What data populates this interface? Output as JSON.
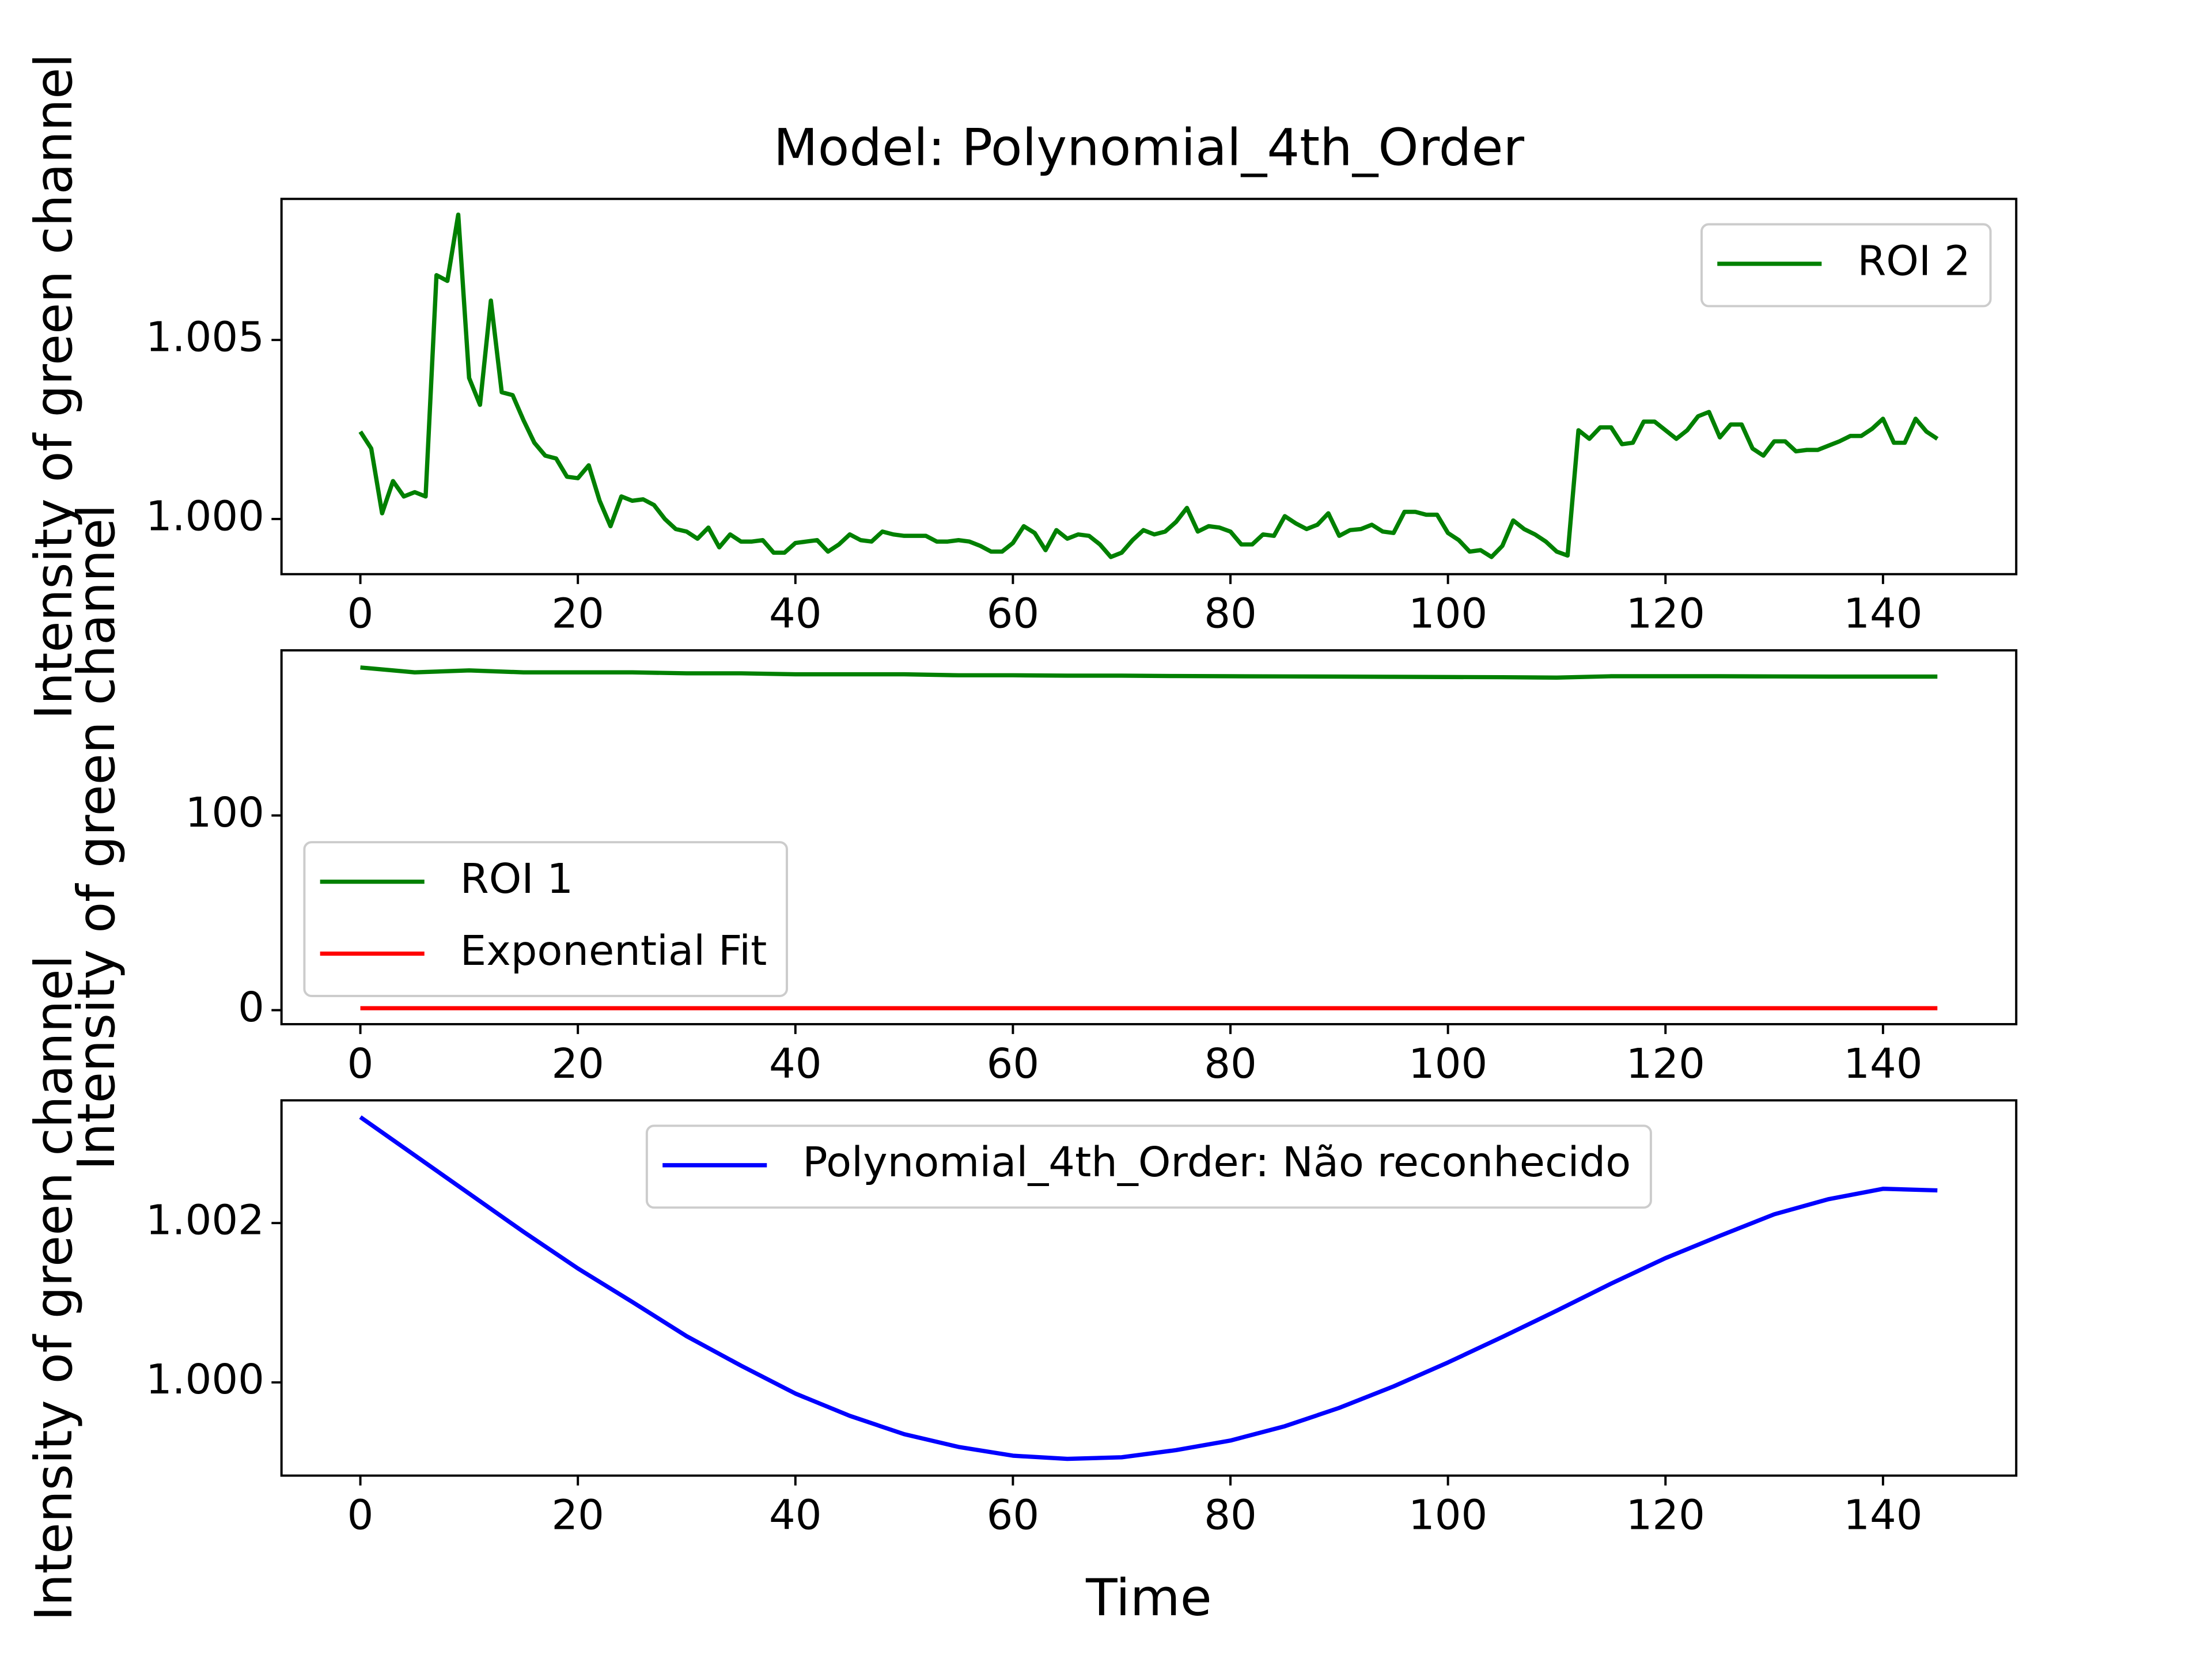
{
  "chart_data": [
    {
      "type": "line",
      "title": "Model: Polynomial_4th_Order",
      "ylabel": "Intensity of green channel",
      "x": [
        0,
        1,
        2,
        3,
        4,
        5,
        6,
        7,
        8,
        9,
        10,
        11,
        12,
        13,
        14,
        15,
        16,
        17,
        18,
        19,
        20,
        21,
        22,
        23,
        24,
        25,
        26,
        27,
        28,
        29,
        30,
        31,
        32,
        33,
        34,
        35,
        36,
        37,
        38,
        39,
        40,
        41,
        42,
        43,
        44,
        45,
        46,
        47,
        48,
        49,
        50,
        51,
        52,
        53,
        54,
        55,
        56,
        57,
        58,
        59,
        60,
        61,
        62,
        63,
        64,
        65,
        66,
        67,
        68,
        69,
        70,
        71,
        72,
        73,
        74,
        75,
        76,
        77,
        78,
        79,
        80,
        81,
        82,
        83,
        84,
        85,
        86,
        87,
        88,
        89,
        90,
        91,
        92,
        93,
        94,
        95,
        96,
        97,
        98,
        99,
        100,
        101,
        102,
        103,
        104,
        105,
        106,
        107,
        108,
        109,
        110,
        111,
        112,
        113,
        114,
        115,
        116,
        117,
        118,
        119,
        120,
        121,
        122,
        123,
        124,
        125,
        126,
        127,
        128,
        129,
        130,
        131,
        132,
        133,
        134,
        135,
        136,
        137,
        138,
        139,
        140,
        141,
        142,
        143,
        144,
        145
      ],
      "series": [
        {
          "name": "ROI 2",
          "color": "#008000",
          "values": [
            1.00244,
            1.00197,
            1.00016,
            1.00106,
            1.00063,
            1.00075,
            1.00063,
            1.00681,
            1.00665,
            1.0085,
            1.00394,
            1.00319,
            1.0061,
            1.00354,
            1.00346,
            1.00276,
            1.00213,
            1.00177,
            1.00169,
            1.00118,
            1.00114,
            1.0015,
            1.00051,
            0.9998,
            1.00063,
            1.00051,
            1.00055,
            1.00039,
            1.0,
            0.99972,
            0.99965,
            0.99945,
            0.99976,
            0.99921,
            0.99957,
            0.99937,
            0.99937,
            0.99941,
            0.99906,
            0.99906,
            0.99933,
            0.99937,
            0.99941,
            0.99909,
            0.99929,
            0.99957,
            0.99941,
            0.99937,
            0.99965,
            0.99957,
            0.99953,
            0.99953,
            0.99953,
            0.99937,
            0.99937,
            0.99941,
            0.99937,
            0.99925,
            0.99909,
            0.99909,
            0.99933,
            0.9998,
            0.99961,
            0.99913,
            0.99969,
            0.99945,
            0.99957,
            0.99953,
            0.99929,
            0.99894,
            0.99906,
            0.99941,
            0.99969,
            0.99957,
            0.99965,
            0.99992,
            1.00031,
            0.99965,
            0.9998,
            0.99976,
            0.99965,
            0.99929,
            0.99929,
            0.99957,
            0.99953,
            1.00008,
            0.99988,
            0.99972,
            0.99984,
            1.00016,
            0.99953,
            0.99969,
            0.99972,
            0.99984,
            0.99965,
            0.99961,
            1.0002,
            1.0002,
            1.00012,
            1.00012,
            0.99961,
            0.99941,
            0.99909,
            0.99913,
            0.99894,
            0.99925,
            0.99996,
            0.99972,
            0.99957,
            0.99937,
            0.99909,
            0.99898,
            1.00248,
            1.00224,
            1.00256,
            1.00256,
            1.00209,
            1.00213,
            1.00272,
            1.00272,
            1.00248,
            1.00224,
            1.00248,
            1.00287,
            1.00299,
            1.00228,
            1.00264,
            1.00264,
            1.00197,
            1.00177,
            1.00217,
            1.00217,
            1.00189,
            1.00193,
            1.00193,
            1.00205,
            1.00217,
            1.00232,
            1.00232,
            1.00252,
            1.0028,
            1.00213,
            1.00213,
            1.0028,
            1.00244,
            1.00224
          ]
        }
      ],
      "xlim": [
        -7.25,
        152.25
      ],
      "ylim": [
        0.99846,
        1.00894
      ],
      "xticks": [
        0,
        20,
        40,
        60,
        80,
        100,
        120,
        140
      ],
      "yticks": [
        {
          "value": 1,
          "label": "1.000"
        },
        1.005
      ],
      "legend": "upper right"
    },
    {
      "type": "line",
      "ylabel": "Intensity of green channel",
      "x": [
        0,
        5,
        10,
        15,
        20,
        25,
        30,
        35,
        40,
        45,
        50,
        55,
        60,
        65,
        70,
        75,
        80,
        85,
        90,
        95,
        100,
        105,
        110,
        115,
        120,
        125,
        130,
        135,
        140,
        145
      ],
      "series": [
        {
          "name": "ROI 1",
          "color": "#008000",
          "values": [
            176,
            173.5,
            174.5,
            173.5,
            173.5,
            173.5,
            173,
            173,
            172.5,
            172.5,
            172.5,
            172,
            172,
            171.8,
            171.8,
            171.6,
            171.5,
            171.4,
            171.3,
            171.2,
            171.1,
            171,
            170.8,
            171.5,
            171.5,
            171.5,
            171.4,
            171.3,
            171.3,
            171.3
          ]
        },
        {
          "name": "Exponential Fit",
          "color": "#ff0000",
          "values": [
            1,
            1,
            1,
            1,
            1,
            1,
            1,
            1,
            1,
            1,
            1,
            1,
            1,
            1,
            1,
            1,
            1,
            1,
            1,
            1,
            1,
            1,
            1,
            1,
            1,
            1,
            1,
            1,
            1,
            1
          ]
        }
      ],
      "xlim": [
        -7.25,
        152.25
      ],
      "ylim": [
        -7.2,
        184.8
      ],
      "xticks": [
        0,
        20,
        40,
        60,
        80,
        100,
        120,
        140
      ],
      "yticks": [
        0,
        100
      ],
      "legend": "lower left"
    },
    {
      "type": "line",
      "ylabel": "Intensity of green channel",
      "xlabel": "Time",
      "x": [
        0,
        5,
        10,
        15,
        20,
        25,
        30,
        35,
        40,
        45,
        50,
        55,
        60,
        65,
        70,
        75,
        80,
        85,
        90,
        95,
        100,
        105,
        110,
        115,
        120,
        125,
        130,
        135,
        140,
        145
      ],
      "series": [
        {
          "name": "Polynomial_4th_Order: Não reconhecido",
          "color": "#0000ff",
          "values": [
            1.00333,
            1.00285,
            1.00237,
            1.00189,
            1.00143,
            1.00101,
            1.00058,
            1.00021,
            0.99986,
            0.99958,
            0.99935,
            0.99919,
            0.99908,
            0.99904,
            0.99906,
            0.99915,
            0.99927,
            0.99945,
            0.99968,
            0.99995,
            1.00025,
            1.00057,
            1.0009,
            1.00124,
            1.00156,
            1.00184,
            1.00211,
            1.0023,
            1.00243,
            1.00241
          ]
        }
      ],
      "xlim": [
        -7.25,
        152.25
      ],
      "ylim": [
        0.99883,
        1.00354
      ],
      "xticks": [
        0,
        20,
        40,
        60,
        80,
        100,
        120,
        140
      ],
      "yticks": [
        {
          "value": 1,
          "label": "1.000"
        },
        1.002
      ],
      "legend": "upper center"
    }
  ]
}
